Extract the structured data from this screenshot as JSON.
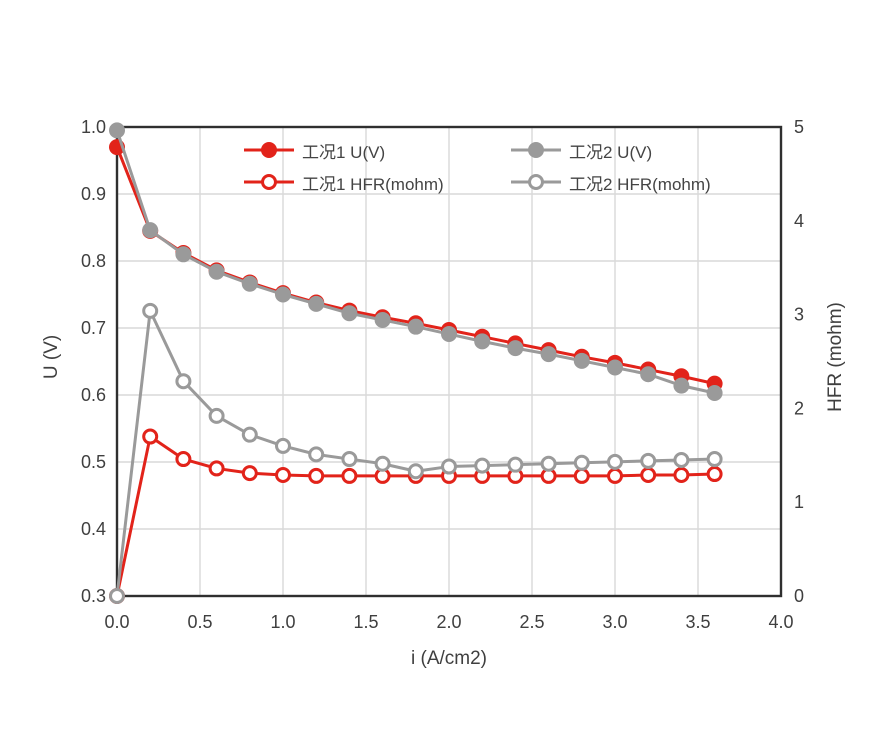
{
  "figure": {
    "background": "#ffffff",
    "grid_color": "#d9d9d9",
    "spine_color": "#2f2f2f",
    "text_color": "#3f3f3f"
  },
  "legend": {
    "items": [
      {
        "label": "工况1 U(V)",
        "color": "#e2231a",
        "marker": "filled-circle"
      },
      {
        "label": "工况2 U(V)",
        "color": "#9a9a9a",
        "marker": "filled-circle"
      },
      {
        "label": "工况1 HFR(mohm)",
        "color": "#e2231a",
        "marker": "open-circle"
      },
      {
        "label": "工况2 HFR(mohm)",
        "color": "#9a9a9a",
        "marker": "open-circle"
      }
    ]
  },
  "chart_data": {
    "type": "line",
    "title": "",
    "xlabel": "i (A/cm2)",
    "ylabel_left": "U (V)",
    "ylabel_right": "HFR (mohm)",
    "xlim": [
      0.0,
      4.0
    ],
    "ylim_left": [
      0.3,
      1.0
    ],
    "ylim_right": [
      0,
      5
    ],
    "x_tick_labels": [
      "0.0",
      "0.5",
      "1.0",
      "1.5",
      "2.0",
      "2.5",
      "3.0",
      "3.5",
      "4.0"
    ],
    "y_left_tick_labels": [
      "0.3",
      "0.4",
      "0.5",
      "0.6",
      "0.7",
      "0.8",
      "0.9",
      "1.0"
    ],
    "y_right_tick_labels": [
      "0",
      "1",
      "2",
      "3",
      "4",
      "5"
    ],
    "grid": true,
    "legend_position": "top-inside-two-columns",
    "x": [
      0.0,
      0.2,
      0.4,
      0.6,
      0.8,
      1.0,
      1.2,
      1.4,
      1.6,
      1.8,
      2.0,
      2.2,
      2.4,
      2.6,
      2.8,
      3.0,
      3.2,
      3.4,
      3.6
    ],
    "series": [
      {
        "name": "工况1 U(V)",
        "key": "condition1-voltage",
        "axis": "left",
        "color": "#e2231a",
        "marker": "filled-circle",
        "values": [
          0.97,
          0.845,
          0.812,
          0.786,
          0.768,
          0.752,
          0.738,
          0.726,
          0.716,
          0.707,
          0.697,
          0.687,
          0.677,
          0.667,
          0.657,
          0.648,
          0.638,
          0.628,
          0.617
        ]
      },
      {
        "name": "工况1 HFR(mohm)",
        "key": "condition1-hfr",
        "axis": "right",
        "color": "#e2231a",
        "marker": "open-circle",
        "values": [
          0.0,
          1.7,
          1.46,
          1.36,
          1.31,
          1.29,
          1.28,
          1.28,
          1.28,
          1.28,
          1.28,
          1.28,
          1.28,
          1.28,
          1.28,
          1.28,
          1.29,
          1.29,
          1.3
        ]
      },
      {
        "name": "工况2 U(V)",
        "key": "condition2-voltage",
        "axis": "left",
        "color": "#9a9a9a",
        "marker": "filled-circle",
        "values": [
          0.995,
          0.846,
          0.81,
          0.784,
          0.766,
          0.75,
          0.736,
          0.722,
          0.712,
          0.702,
          0.691,
          0.68,
          0.67,
          0.661,
          0.651,
          0.641,
          0.631,
          0.614,
          0.603
        ]
      },
      {
        "name": "工况2 HFR(mohm)",
        "key": "condition2-hfr",
        "axis": "right",
        "color": "#9a9a9a",
        "marker": "open-circle",
        "values": [
          0.0,
          3.04,
          2.29,
          1.92,
          1.72,
          1.6,
          1.51,
          1.46,
          1.41,
          1.33,
          1.38,
          1.39,
          1.4,
          1.41,
          1.42,
          1.43,
          1.44,
          1.45,
          1.46
        ]
      }
    ]
  }
}
